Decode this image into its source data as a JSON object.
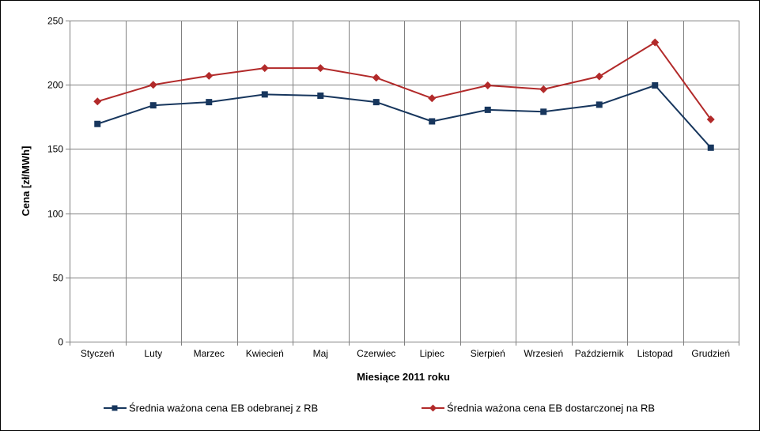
{
  "chart_data": {
    "type": "line",
    "xlabel": "Miesiące 2011  roku",
    "ylabel": "Cena [zł/MWh]",
    "ylim": [
      0,
      250
    ],
    "yticks": [
      0,
      50,
      100,
      150,
      200,
      250
    ],
    "grid": true,
    "legend_position": "bottom",
    "categories": [
      "Styczeń",
      "Luty",
      "Marzec",
      "Kwiecień",
      "Maj",
      "Czerwiec",
      "Lipiec",
      "Sierpień",
      "Wrzesień",
      "Październik",
      "Listopad",
      "Grudzień"
    ],
    "series": [
      {
        "name": "Średnia ważona cena EB odebranej z RB",
        "color": "#17365d",
        "marker": "square",
        "values": [
          169.5,
          184,
          186.5,
          192.5,
          191.5,
          186.5,
          171.5,
          180.5,
          179,
          184.5,
          199.5,
          151
        ]
      },
      {
        "name": "Średnia ważona cena EB dostarczonej na RB",
        "color": "#b22a2a",
        "marker": "diamond",
        "values": [
          187,
          200,
          207,
          213,
          213,
          205.5,
          189.5,
          199.5,
          196.5,
          206.5,
          233,
          173
        ]
      }
    ]
  }
}
